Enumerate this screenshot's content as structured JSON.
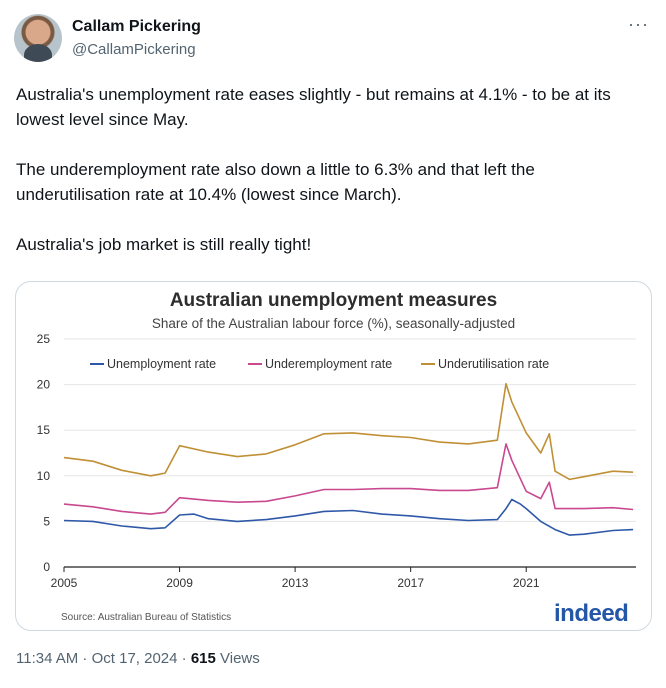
{
  "author": {
    "name": "Callam Pickering",
    "handle": "@CallamPickering"
  },
  "menu": {
    "more": "···"
  },
  "tweet": {
    "p1": "Australia's unemployment rate eases slightly - but remains at 4.1% - to be at its lowest level since May.",
    "p2": "The underemployment rate also down a little to 6.3% and that left the underutilisation rate at 10.4% (lowest since March).",
    "p3": "Australia's job market is still really tight!"
  },
  "chart_data": {
    "type": "line",
    "title": "Australian unemployment measures",
    "subtitle": "Share of the Australian labour force (%), seasonally-adjusted",
    "x_ticks": [
      "2005",
      "2009",
      "2013",
      "2017",
      "2021"
    ],
    "y_ticks": [
      "0",
      "5",
      "10",
      "15",
      "20",
      "25"
    ],
    "xlim": [
      2005,
      2024.8
    ],
    "ylim": [
      0,
      25
    ],
    "grid": true,
    "legend_placement": "top",
    "source": "Source: Australian Bureau of Statistics",
    "logo": "indeed",
    "series": [
      {
        "name": "Unemployment rate",
        "color": "#2f59a8",
        "points": [
          [
            2005,
            5.1
          ],
          [
            2006,
            5.0
          ],
          [
            2007,
            4.5
          ],
          [
            2008,
            4.2
          ],
          [
            2008.5,
            4.3
          ],
          [
            2009,
            5.7
          ],
          [
            2009.5,
            5.8
          ],
          [
            2010,
            5.3
          ],
          [
            2011,
            5.0
          ],
          [
            2012,
            5.2
          ],
          [
            2013,
            5.6
          ],
          [
            2014,
            6.1
          ],
          [
            2015,
            6.2
          ],
          [
            2016,
            5.8
          ],
          [
            2017,
            5.6
          ],
          [
            2018,
            5.3
          ],
          [
            2019,
            5.1
          ],
          [
            2020,
            5.2
          ],
          [
            2020.3,
            6.4
          ],
          [
            2020.5,
            7.4
          ],
          [
            2020.8,
            6.9
          ],
          [
            2021,
            6.4
          ],
          [
            2021.5,
            5.0
          ],
          [
            2022,
            4.1
          ],
          [
            2022.5,
            3.5
          ],
          [
            2023,
            3.6
          ],
          [
            2024,
            4.0
          ],
          [
            2024.7,
            4.1
          ]
        ]
      },
      {
        "name": "Underemployment rate",
        "color": "#c9488f",
        "points": [
          [
            2005,
            6.9
          ],
          [
            2006,
            6.6
          ],
          [
            2007,
            6.1
          ],
          [
            2008,
            5.8
          ],
          [
            2008.5,
            6.0
          ],
          [
            2009,
            7.6
          ],
          [
            2010,
            7.3
          ],
          [
            2011,
            7.1
          ],
          [
            2012,
            7.2
          ],
          [
            2013,
            7.8
          ],
          [
            2014,
            8.5
          ],
          [
            2015,
            8.5
          ],
          [
            2016,
            8.6
          ],
          [
            2017,
            8.6
          ],
          [
            2018,
            8.4
          ],
          [
            2019,
            8.4
          ],
          [
            2020,
            8.7
          ],
          [
            2020.3,
            13.5
          ],
          [
            2020.5,
            11.7
          ],
          [
            2021,
            8.3
          ],
          [
            2021.5,
            7.5
          ],
          [
            2021.8,
            9.3
          ],
          [
            2022,
            6.4
          ],
          [
            2023,
            6.4
          ],
          [
            2024,
            6.5
          ],
          [
            2024.7,
            6.3
          ]
        ]
      },
      {
        "name": "Underutilisation rate",
        "color": "#c09036",
        "points": [
          [
            2005,
            12.0
          ],
          [
            2006,
            11.6
          ],
          [
            2007,
            10.6
          ],
          [
            2008,
            10.0
          ],
          [
            2008.5,
            10.3
          ],
          [
            2009,
            13.3
          ],
          [
            2010,
            12.6
          ],
          [
            2011,
            12.1
          ],
          [
            2012,
            12.4
          ],
          [
            2013,
            13.4
          ],
          [
            2014,
            14.6
          ],
          [
            2015,
            14.7
          ],
          [
            2016,
            14.4
          ],
          [
            2017,
            14.2
          ],
          [
            2018,
            13.7
          ],
          [
            2019,
            13.5
          ],
          [
            2020,
            13.9
          ],
          [
            2020.3,
            20.1
          ],
          [
            2020.5,
            18.1
          ],
          [
            2021,
            14.7
          ],
          [
            2021.5,
            12.5
          ],
          [
            2021.8,
            14.6
          ],
          [
            2022,
            10.5
          ],
          [
            2022.5,
            9.6
          ],
          [
            2023,
            9.9
          ],
          [
            2024,
            10.5
          ],
          [
            2024.7,
            10.4
          ]
        ]
      }
    ]
  },
  "meta": {
    "time": "11:34 AM · Oct 17, 2024 · ",
    "views": "615",
    "views_label": " Views"
  }
}
